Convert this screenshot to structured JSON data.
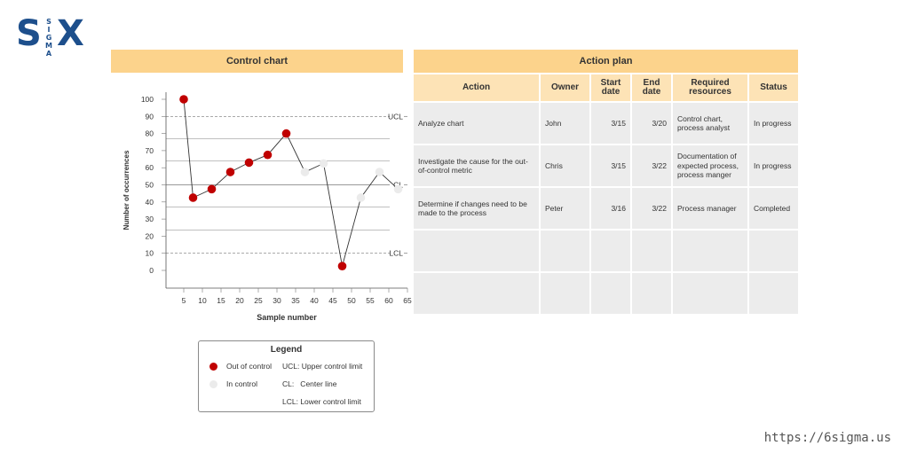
{
  "logo": {
    "left": "S",
    "middle": [
      "S",
      "I",
      "G",
      "M",
      "A"
    ],
    "right": "X",
    "color": "#1d4f8c"
  },
  "url": "https://6sigma.us",
  "control_chart": {
    "title": "Control chart",
    "chart_data": {
      "type": "scatter",
      "xlabel": "Sample number",
      "ylabel": "Number of occurrences",
      "x_ticks": [
        5,
        10,
        15,
        20,
        25,
        30,
        35,
        40,
        45,
        50,
        55,
        60,
        65
      ],
      "y_ticks": [
        0,
        10,
        20,
        30,
        40,
        50,
        60,
        70,
        80,
        90,
        100
      ],
      "xlim": [
        2,
        66
      ],
      "ylim": [
        0,
        100
      ],
      "control_lines": [
        {
          "label": "UCL",
          "value": 90
        },
        {
          "label": "CL",
          "value": 50
        },
        {
          "label": "LCL",
          "value": 10
        }
      ],
      "gridlines": [
        23.5,
        37,
        64,
        77
      ],
      "points": [
        {
          "x": 5,
          "y": 100,
          "state": "out"
        },
        {
          "x": 7.5,
          "y": 42.5,
          "state": "out"
        },
        {
          "x": 12.5,
          "y": 47.5,
          "state": "out"
        },
        {
          "x": 17.5,
          "y": 57.5,
          "state": "out"
        },
        {
          "x": 22.5,
          "y": 63,
          "state": "out"
        },
        {
          "x": 27.5,
          "y": 67.5,
          "state": "out"
        },
        {
          "x": 32.5,
          "y": 80,
          "state": "out"
        },
        {
          "x": 37.5,
          "y": 57.5,
          "state": "in"
        },
        {
          "x": 42.5,
          "y": 62.5,
          "state": "in"
        },
        {
          "x": 47.5,
          "y": 2.5,
          "state": "out"
        },
        {
          "x": 52.5,
          "y": 42.5,
          "state": "in"
        },
        {
          "x": 57.5,
          "y": 57.5,
          "state": "in"
        },
        {
          "x": 62.5,
          "y": 47.5,
          "state": "in"
        }
      ],
      "colors": {
        "out": "#c00000",
        "in": "#ebebeb",
        "line": "#333333"
      }
    },
    "legend": {
      "title": "Legend",
      "out_label": "Out of control",
      "in_label": "In control",
      "ucl": "UCL: Upper control limit",
      "cl": "CL:   Center line",
      "lcl": "LCL: Lower control limit"
    }
  },
  "action_plan": {
    "title": "Action plan",
    "headers": {
      "action": "Action",
      "owner": "Owner",
      "start": "Start date",
      "end": "End date",
      "resources": "Required resources",
      "status": "Status"
    },
    "rows": [
      {
        "action": "Analyze chart",
        "owner": "John",
        "start": "3/15",
        "end": "3/20",
        "resources": "Control chart, process analyst",
        "status": "In progress"
      },
      {
        "action": "Investigate the cause for the out-of-control metric",
        "owner": "Chris",
        "start": "3/15",
        "end": "3/22",
        "resources": "Documentation of expected process, process manger",
        "status": "In progress"
      },
      {
        "action": "Determine if changes need to be made to the process",
        "owner": "Peter",
        "start": "3/16",
        "end": "3/22",
        "resources": "Process manager",
        "status": "Completed"
      },
      {
        "action": "",
        "owner": "",
        "start": "",
        "end": "",
        "resources": "",
        "status": ""
      },
      {
        "action": "",
        "owner": "",
        "start": "",
        "end": "",
        "resources": "",
        "status": ""
      }
    ]
  }
}
